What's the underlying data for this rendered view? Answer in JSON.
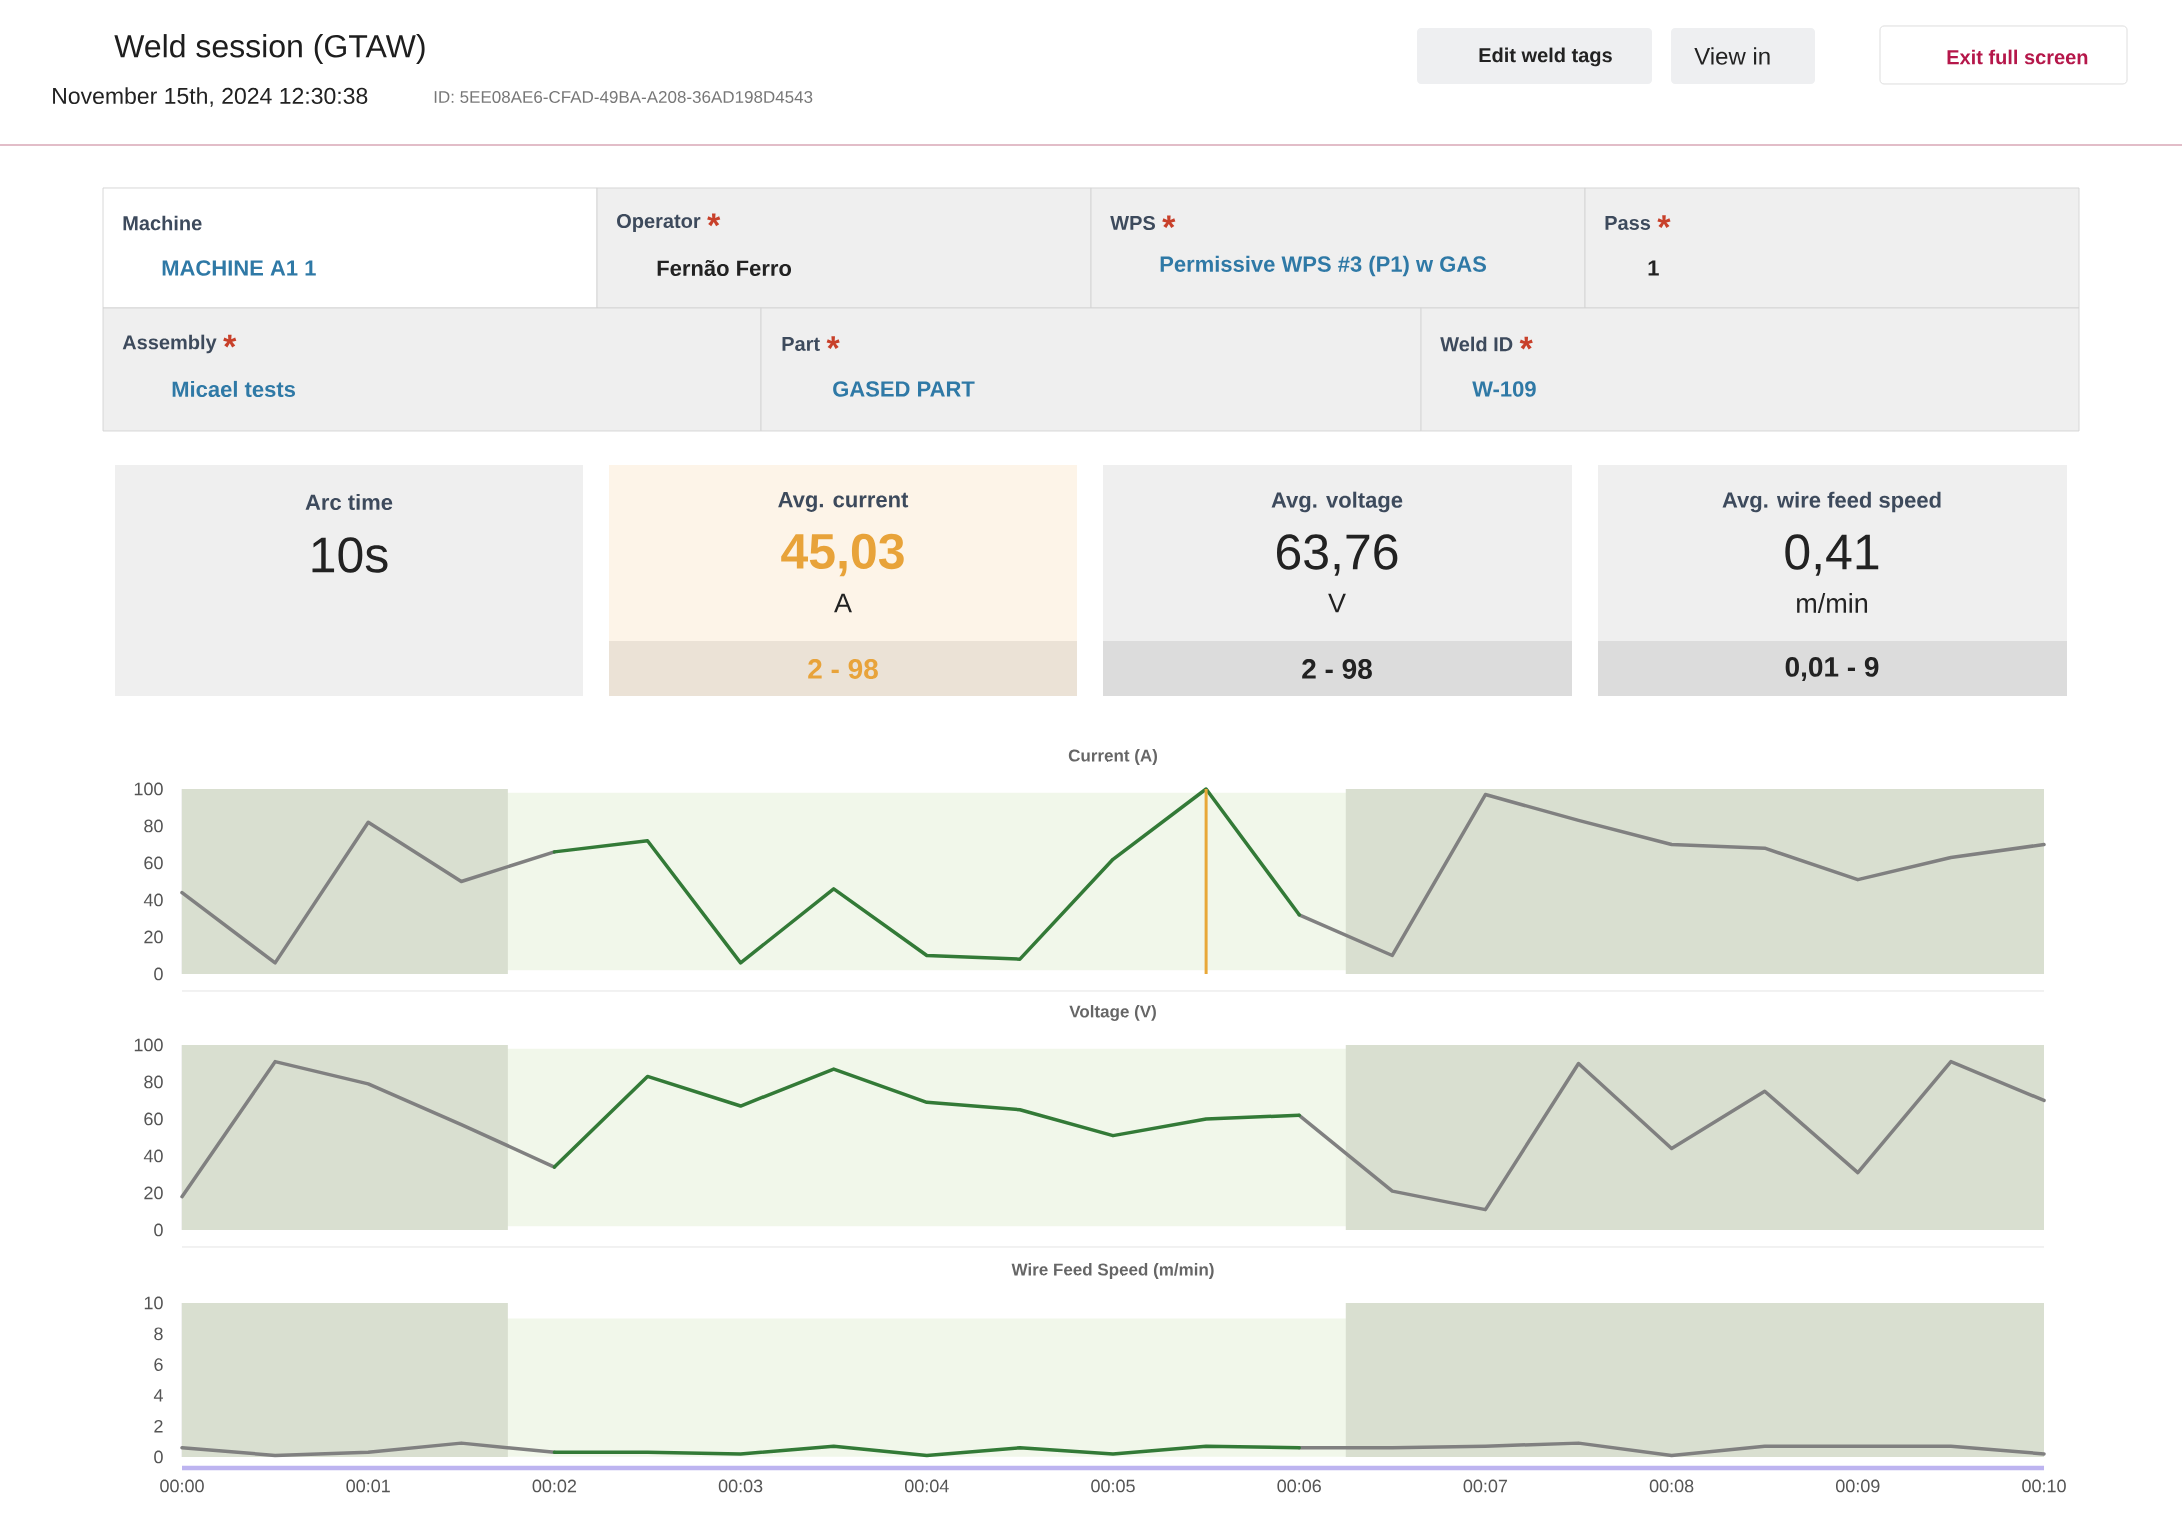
{
  "chart_data": [
    {
      "type": "other",
      "title": "Weld session (GTAW)",
      "subtitle": "November 15th, 2024 12:30:38",
      "annotations": [
        "ID: 5EE08AE6-CFAD-49BA-A208-36AD198D4543",
        "Edit weld tags",
        "View in",
        "Exit full screen",
        "Machine",
        "MACHINE A1 1",
        "Operator",
        "*",
        "Fernão Ferro",
        "WPS",
        "*",
        "Permissive WPS #3 (P1) w GAS",
        "Pass",
        "*",
        "1",
        "Assembly",
        "*",
        "Micael tests",
        "Part",
        "*",
        "GASED PART",
        "Weld ID",
        "*",
        "W-109",
        "Arc time",
        "10s",
        "Avg. current",
        "45,03",
        "A",
        "2 - 98",
        "Avg. voltage",
        "63,76",
        "V",
        "2 - 98",
        "Avg. wire feed speed",
        "0,41",
        "m/min",
        "0,01 - 9"
      ]
    },
    {
      "type": "line",
      "title": "Current (A)",
      "x": [
        0,
        0.5,
        1,
        1.5,
        2,
        2.5,
        3,
        3.5,
        4,
        4.5,
        5,
        5.5,
        6,
        6.5,
        7,
        7.5,
        8,
        8.5,
        9,
        9.5,
        10
      ],
      "series": [
        {
          "color": "#808080",
          "values": [
            44,
            6,
            82,
            50,
            66,
            null,
            null,
            null,
            null,
            null,
            null,
            null,
            32,
            10,
            97,
            83,
            70,
            68,
            51,
            63,
            70
          ]
        },
        {
          "color": "#337a37",
          "x": [
            2,
            2.5,
            3,
            3.5,
            4,
            4.5,
            5,
            5.5,
            6
          ],
          "values": [
            66,
            72,
            6,
            46,
            10,
            8,
            62,
            100,
            32
          ]
        }
      ],
      "xlim": [
        0,
        10
      ],
      "ylim": [
        0,
        100
      ],
      "yticks": [
        0,
        20,
        40,
        60,
        80,
        100
      ],
      "tick_labels": "y",
      "bands": [
        {
          "axis": "y",
          "from": 2,
          "to": 98,
          "color": "#f1f7ea"
        },
        {
          "axis": "x",
          "from": 0,
          "to": 1.75,
          "color": "#d9dfd0"
        },
        {
          "axis": "x",
          "from": 6.25,
          "to": 10,
          "color": "#d9dfd0"
        }
      ],
      "ref_lines": [
        {
          "axis": "x",
          "value": 5.5,
          "color": "#e8a838"
        }
      ]
    },
    {
      "type": "line",
      "title": "Voltage (V)",
      "x": [
        0,
        0.5,
        1,
        1.5,
        2,
        2.5,
        3,
        3.5,
        4,
        4.5,
        5,
        5.5,
        6,
        6.5,
        7,
        7.5,
        8,
        8.5,
        9,
        9.5,
        10
      ],
      "series": [
        {
          "color": "#808080",
          "values": [
            18,
            91,
            79,
            57,
            34,
            null,
            null,
            null,
            null,
            null,
            null,
            null,
            62,
            21,
            11,
            90,
            44,
            75,
            31,
            91,
            70
          ]
        },
        {
          "color": "#337a37",
          "x": [
            2,
            2.5,
            3,
            3.5,
            4,
            4.5,
            5,
            5.5,
            6
          ],
          "values": [
            34,
            83,
            67,
            87,
            69,
            65,
            51,
            60,
            62
          ]
        }
      ],
      "xlim": [
        0,
        10
      ],
      "ylim": [
        0,
        100
      ],
      "yticks": [
        0,
        20,
        40,
        60,
        80,
        100
      ],
      "tick_labels": "y",
      "bands": [
        {
          "axis": "y",
          "from": 2,
          "to": 98,
          "color": "#f1f7ea"
        },
        {
          "axis": "x",
          "from": 0,
          "to": 1.75,
          "color": "#d9dfd0"
        },
        {
          "axis": "x",
          "from": 6.25,
          "to": 10,
          "color": "#d9dfd0"
        }
      ]
    },
    {
      "type": "line",
      "title": "Wire Feed Speed (m/min)",
      "x": [
        0,
        0.5,
        1,
        1.5,
        2,
        2.5,
        3,
        3.5,
        4,
        4.5,
        5,
        5.5,
        6,
        6.5,
        7,
        7.5,
        8,
        8.5,
        9,
        9.5,
        10
      ],
      "series": [
        {
          "color": "#808080",
          "values": [
            0.6,
            0.1,
            0.3,
            0.9,
            0.3,
            null,
            null,
            null,
            null,
            null,
            null,
            null,
            0.6,
            0.6,
            0.7,
            0.9,
            0.1,
            0.7,
            0.7,
            0.7,
            0.2
          ]
        },
        {
          "color": "#337a37",
          "x": [
            2,
            2.5,
            3,
            3.5,
            4,
            4.5,
            5,
            5.5,
            6
          ],
          "values": [
            0.3,
            0.3,
            0.2,
            0.7,
            0.1,
            0.6,
            0.2,
            0.7,
            0.6
          ]
        }
      ],
      "xlim": [
        0,
        10
      ],
      "xticks": [
        {
          "value": 0,
          "label": "00:00"
        },
        {
          "value": 1,
          "label": "00:01"
        },
        {
          "value": 2,
          "label": "00:02"
        },
        {
          "value": 3,
          "label": "00:03"
        },
        {
          "value": 4,
          "label": "00:04"
        },
        {
          "value": 5,
          "label": "00:05"
        },
        {
          "value": 6,
          "label": "00:06"
        },
        {
          "value": 7,
          "label": "00:07"
        },
        {
          "value": 8,
          "label": "00:08"
        },
        {
          "value": 9,
          "label": "00:09"
        },
        {
          "value": 10,
          "label": "00:10"
        }
      ],
      "ylim": [
        0,
        10
      ],
      "yticks": [
        0,
        2,
        4,
        6,
        8,
        10
      ],
      "bands": [
        {
          "axis": "y",
          "from": 0.01,
          "to": 9,
          "color": "#f1f7ea"
        },
        {
          "axis": "x",
          "from": 0,
          "to": 1.75,
          "color": "#d9dfd0"
        },
        {
          "axis": "x",
          "from": 6.25,
          "to": 10,
          "color": "#d9dfd0"
        }
      ]
    }
  ]
}
